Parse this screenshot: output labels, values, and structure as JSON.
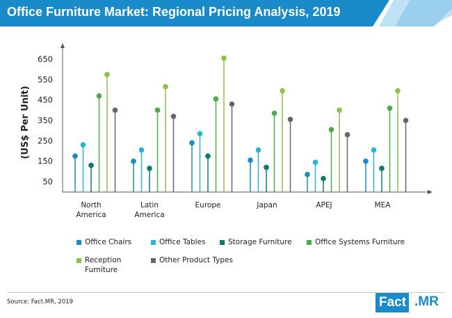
{
  "title": "Office Furniture Market: Regional Pricing Analysis, 2019",
  "source": "Source: Fact.MR, 2019",
  "logo": {
    "part1": "Fact",
    "part2": ".MR"
  },
  "colors": {
    "banner": "#1a8bc9",
    "banner_accent": "#9ad0ee",
    "axis": "#555555"
  },
  "chart_data": {
    "type": "lollipop",
    "ylabel": "(US$ Per Unit)",
    "yticks": [
      50,
      150,
      250,
      350,
      450,
      550,
      650
    ],
    "ylim": [
      0,
      700
    ],
    "categories": [
      "North America",
      "Latin America",
      "Europe",
      "Japan",
      "APEJ",
      "MEA"
    ],
    "category_lines": [
      [
        "North",
        "America"
      ],
      [
        "Latin",
        "America"
      ],
      [
        "Europe"
      ],
      [
        "Japan"
      ],
      [
        "APEJ"
      ],
      [
        "MEA"
      ]
    ],
    "series": [
      {
        "name": "Office Chairs",
        "color": "#1a8bc9",
        "values": [
          175,
          150,
          240,
          155,
          85,
          150
        ]
      },
      {
        "name": "Office Tables",
        "color": "#25b5d9",
        "values": [
          230,
          205,
          285,
          205,
          145,
          205
        ]
      },
      {
        "name": "Storage Furniture",
        "color": "#0d7a6b",
        "values": [
          130,
          115,
          175,
          120,
          65,
          115
        ]
      },
      {
        "name": "Office Systems Furniture",
        "color": "#4caa4a",
        "values": [
          470,
          400,
          455,
          385,
          305,
          410
        ]
      },
      {
        "name": "Reception Furniture",
        "color": "#8cc14a",
        "values": [
          575,
          515,
          655,
          495,
          400,
          495
        ]
      },
      {
        "name": "Other Product Types",
        "color": "#666666",
        "values": [
          400,
          370,
          430,
          355,
          280,
          350
        ]
      }
    ],
    "legend_labels": [
      [
        "Office Chairs"
      ],
      [
        "Office Tables"
      ],
      [
        "Storage Furniture"
      ],
      [
        "Office Systems Furniture"
      ],
      [
        "Reception",
        "Furniture"
      ],
      [
        "Other Product Types"
      ]
    ],
    "grid": false,
    "legend_position": "bottom"
  }
}
